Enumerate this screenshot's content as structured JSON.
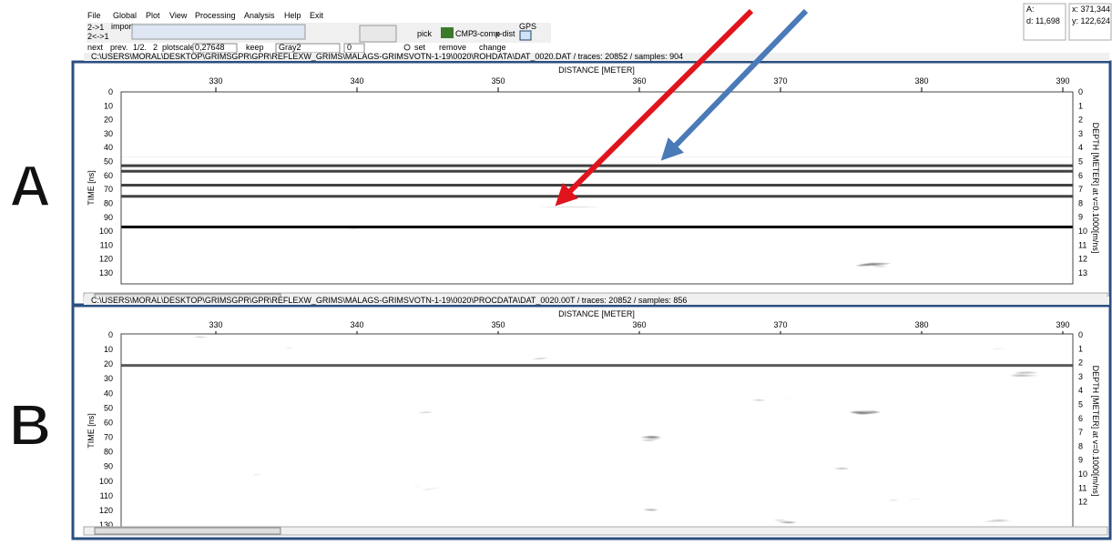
{
  "menu": [
    "File",
    "Global",
    "Plot",
    "View",
    "Processing",
    "Analysis",
    "Help",
    "Exit"
  ],
  "toolbar": {
    "swap1": "2->1",
    "swap2": "2<->1",
    "import": "import",
    "pick": "pick",
    "cmp": "CMP",
    "comp3": "3-comp",
    "xdist": "x-dist",
    "gps": "GPS",
    "next": "next",
    "prev": "prev.",
    "half": "1/2.",
    "two": "2",
    "plotscale_label": "plotscale",
    "plotscale_value": "0,27648",
    "keep": "keep",
    "palette": "Gray2",
    "spin": "0",
    "set": "set",
    "remove": "remove",
    "change": "change"
  },
  "status": {
    "a": "A:",
    "d": "d: 11,698",
    "x": "x: 371,344",
    "y": "y: 122,624"
  },
  "panels": [
    {
      "label": "A",
      "path": "C:\\USERS\\MORAL\\DESKTOP\\GRIMSGPR\\GPR\\REFLEXW_GRIMS\\MALAGS-GRIMSVOTN-1-19\\0020\\ROHDATA\\DAT_0020.DAT / traces: 20852 / samples: 904",
      "distance_label": "DISTANCE [METER]",
      "x_ticks": [
        330,
        340,
        350,
        360,
        370,
        380,
        390
      ],
      "time_label": "TIME [ns]",
      "time_ticks": [
        0,
        10,
        20,
        30,
        40,
        50,
        60,
        70,
        80,
        90,
        100,
        110,
        120,
        130
      ],
      "depth_label": "DEPTH [METER] at v=0.1000[m/ns]",
      "depth_ticks": [
        0,
        1,
        2,
        3,
        4,
        5,
        6,
        7,
        8,
        9,
        10,
        11,
        12,
        13
      ]
    },
    {
      "label": "B",
      "path": "C:\\USERS\\MORAL\\DESKTOP\\GRIMSGPR\\GPR\\REFLEXW_GRIMS\\MALAGS-GRIMSVOTN-1-19\\0020\\PROCDATA\\DAT_0020.00T / traces: 20852 / samples: 856",
      "distance_label": "DISTANCE [METER]",
      "x_ticks": [
        330,
        340,
        350,
        360,
        370,
        380,
        390
      ],
      "time_label": "TIME [ns]",
      "time_ticks": [
        0,
        10,
        20,
        30,
        40,
        50,
        60,
        70,
        80,
        90,
        100,
        110,
        120,
        130
      ],
      "depth_label": "DEPTH [METER] at v=0.1000[m/ns]",
      "depth_ticks": [
        0,
        1,
        2,
        3,
        4,
        5,
        6,
        7,
        8,
        9,
        10,
        11,
        12
      ]
    }
  ]
}
